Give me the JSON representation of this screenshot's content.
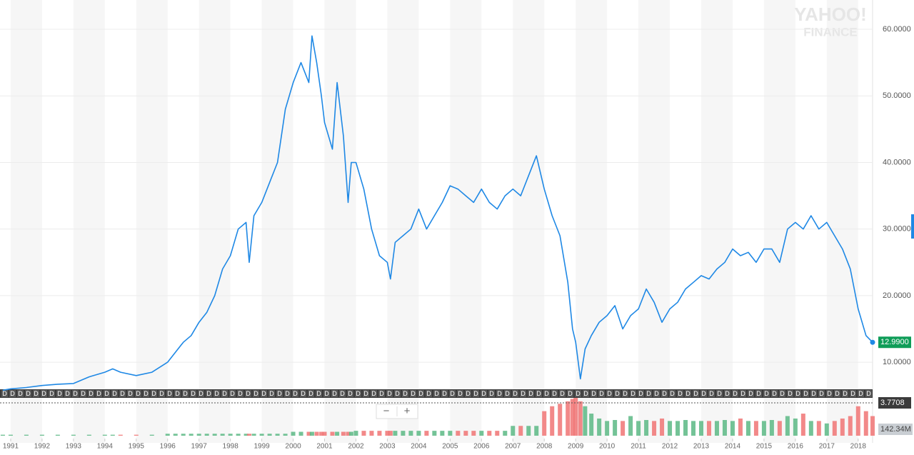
{
  "chart_data": {
    "type": "line",
    "watermark": [
      "YAHOO!",
      "FINANCE"
    ],
    "x": [
      1990.75,
      1991,
      1991.5,
      1992,
      1992.5,
      1993,
      1993.5,
      1994,
      1994.25,
      1994.5,
      1995,
      1995.5,
      1996,
      1996.25,
      1996.5,
      1996.75,
      1997,
      1997.25,
      1997.5,
      1997.75,
      1998,
      1998.25,
      1998.5,
      1998.6,
      1998.75,
      1999,
      1999.25,
      1999.5,
      1999.75,
      2000,
      2000.25,
      2000.5,
      2000.6,
      2000.75,
      2000.9,
      2001,
      2001.25,
      2001.4,
      2001.6,
      2001.75,
      2001.85,
      2002,
      2002.25,
      2002.5,
      2002.75,
      2003,
      2003.1,
      2003.25,
      2003.5,
      2003.75,
      2004,
      2004.25,
      2004.5,
      2004.75,
      2005,
      2005.25,
      2005.5,
      2005.75,
      2006,
      2006.25,
      2006.5,
      2006.75,
      2007,
      2007.25,
      2007.5,
      2007.75,
      2008,
      2008.25,
      2008.5,
      2008.75,
      2008.9,
      2009,
      2009.15,
      2009.3,
      2009.5,
      2009.75,
      2010,
      2010.25,
      2010.5,
      2010.75,
      2011,
      2011.25,
      2011.5,
      2011.75,
      2012,
      2012.25,
      2012.5,
      2012.75,
      2013,
      2013.25,
      2013.5,
      2013.75,
      2014,
      2014.25,
      2014.5,
      2014.75,
      2015,
      2015.25,
      2015.5,
      2015.75,
      2016,
      2016.25,
      2016.5,
      2016.75,
      2017,
      2017.25,
      2017.5,
      2017.75,
      2018,
      2018.25,
      2018.46
    ],
    "series": [
      {
        "name": "price",
        "color": "#1e88e5",
        "values": [
          5.8,
          6.0,
          6.2,
          6.5,
          6.7,
          6.8,
          7.8,
          8.5,
          9.0,
          8.5,
          8.0,
          8.5,
          10.0,
          11.5,
          13,
          14,
          16,
          17.5,
          20,
          24,
          26,
          30,
          31,
          25,
          32,
          34,
          37,
          40,
          48,
          52,
          55,
          52,
          59,
          55,
          50,
          46,
          42,
          52,
          44,
          34,
          40,
          40,
          36,
          30,
          26,
          25,
          22.5,
          28,
          29,
          30,
          33,
          30,
          32,
          34,
          36.5,
          36,
          35,
          34,
          36,
          34,
          33,
          35,
          36,
          35,
          38,
          41,
          36,
          32,
          29,
          22,
          15,
          13,
          7.5,
          12,
          14,
          16,
          17,
          18.5,
          15,
          17,
          18,
          21,
          19,
          16,
          18,
          19,
          21,
          22,
          23,
          22.5,
          24,
          25,
          27,
          26,
          26.5,
          25,
          27,
          27,
          25,
          30,
          31,
          30,
          32,
          30,
          31,
          29,
          27,
          24,
          18,
          14,
          12.99
        ]
      }
    ],
    "volume": {
      "up_color": "#5cb985",
      "down_color": "#f07474",
      "ylim": [
        0,
        800
      ],
      "values": [
        20,
        20,
        20,
        20,
        20,
        20,
        20,
        20,
        20,
        20,
        20,
        20,
        40,
        40,
        40,
        40,
        40,
        40,
        40,
        40,
        40,
        40,
        40,
        40,
        40,
        40,
        40,
        40,
        40,
        80,
        80,
        80,
        80,
        80,
        80,
        80,
        80,
        80,
        80,
        80,
        80,
        100,
        100,
        100,
        100,
        100,
        100,
        100,
        100,
        100,
        100,
        100,
        100,
        100,
        100,
        100,
        100,
        100,
        100,
        100,
        100,
        100,
        200,
        200,
        200,
        200,
        500,
        600,
        650,
        700,
        750,
        780,
        700,
        600,
        450,
        350,
        300,
        320,
        300,
        400,
        300,
        320,
        300,
        350,
        300,
        300,
        320,
        300,
        300,
        300,
        300,
        320,
        300,
        350,
        300,
        300,
        300,
        320,
        300,
        400,
        350,
        450,
        300,
        300,
        250,
        300,
        350,
        400,
        600,
        500,
        400
      ]
    },
    "xlim": [
      1990.66,
      2018.46
    ],
    "xticks": [
      1991,
      1992,
      1993,
      1994,
      1995,
      1996,
      1997,
      1998,
      1999,
      2000,
      2001,
      2002,
      2003,
      2004,
      2005,
      2006,
      2007,
      2008,
      2009,
      2010,
      2011,
      2012,
      2013,
      2014,
      2015,
      2016,
      2017,
      2018
    ],
    "ylim": [
      5.4,
      64.4
    ],
    "yticks": [
      {
        "value": 10,
        "label": "10.0000"
      },
      {
        "value": 20,
        "label": "20.0000"
      },
      {
        "value": 30,
        "label": "30.0000"
      },
      {
        "value": 40,
        "label": "40.0000"
      },
      {
        "value": 50,
        "label": "50.0000"
      },
      {
        "value": 60,
        "label": "60.0000"
      }
    ],
    "last_price": {
      "value": 12.99,
      "label": "12.9900"
    },
    "indicator_label": "3.7708",
    "volume_label": "142.34M",
    "event_marker": "D",
    "zoom_out": "−",
    "zoom_in": "+",
    "grid": true
  }
}
